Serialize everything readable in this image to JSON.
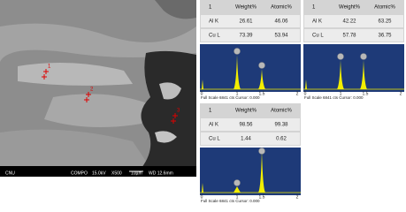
{
  "sem_image": {
    "labels": [
      "CNU",
      "COMPO",
      "15.0kV",
      "X500",
      "10µm",
      "WD 12.6mm"
    ],
    "markers": [
      "1",
      "2",
      "3"
    ]
  },
  "panels": [
    {
      "table": {
        "header": [
          "1",
          "Weight%",
          "Atomic%"
        ],
        "rows": [
          [
            "Al K",
            26.61,
            46.06
          ],
          [
            "Cu L",
            73.39,
            53.94
          ]
        ]
      },
      "axis_labels": [
        "0",
        "1",
        "1.5",
        "2"
      ],
      "footer": "Full Scale 6841 cts Cursor: 0.000"
    },
    {
      "table": {
        "header": [
          "1",
          "Weight%",
          "Atomic%"
        ],
        "rows": [
          [
            "Al K",
            42.22,
            63.25
          ],
          [
            "Cu L",
            57.78,
            36.75
          ]
        ]
      },
      "axis_labels": [
        "0",
        "1",
        "1.5",
        "2"
      ],
      "footer": "Full Scale 6841 cts Cursor: 0.000"
    },
    {
      "table": {
        "header": [
          "1",
          "Weight%",
          "Atomic%"
        ],
        "rows": [
          [
            "Al K",
            98.56,
            99.38
          ],
          [
            "Cu L",
            1.44,
            0.62
          ]
        ]
      },
      "axis_labels": [
        "0",
        "1",
        "1.5",
        "2"
      ],
      "footer": "Full Scale 6841 cts Cursor: 0.000"
    }
  ]
}
